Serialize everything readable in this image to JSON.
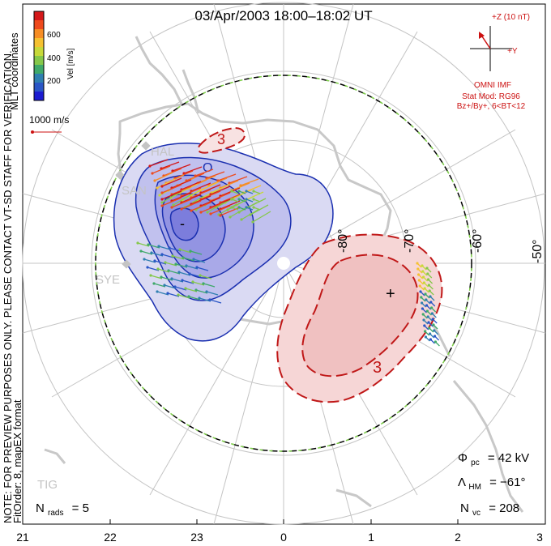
{
  "title": "03/Apr/2003 18:00–18:02 UT",
  "side_note": "NOTE: FOR PREVIEW PURPOSES ONLY. PLEASE CONTACT VT-SD STAFF FOR VERIFICATION.",
  "side_note2": "FitOrder: 8, mapEX format",
  "coord_label": "MLT coordinates",
  "colorbar": {
    "label": "Vel [m/s]",
    "ticks": [
      "600",
      "400",
      "200"
    ],
    "colors": [
      "#d4181a",
      "#ee4a1d",
      "#f68d25",
      "#f5c131",
      "#c7d93a",
      "#85c84a",
      "#3fa96a",
      "#2f7fb0",
      "#2a56c6",
      "#1b1bd0"
    ]
  },
  "ref_vector": "1000 m/s",
  "imf": {
    "z_label": "+Z (10 nT)",
    "y_label": "+Y",
    "source": "OMNI IMF",
    "model": "Stat Mod: RG96",
    "condition": "Bz+/By+, 6<BT<12",
    "arrow_color": "#cc1111"
  },
  "latitude_labels": [
    "-80°",
    "-70°",
    "-60°",
    "-50°"
  ],
  "mlt_ticks": [
    "21",
    "22",
    "23",
    "0",
    "1",
    "2",
    "3"
  ],
  "stations": [
    "HAL",
    "SAN",
    "SYE",
    "TIG"
  ],
  "contour_labels": {
    "neg_min": "-",
    "neg_small": "O",
    "pos_3a": "3",
    "pos_3b": "3",
    "pos_max": "+"
  },
  "stats": {
    "phi_label": "Φ",
    "phi_sub": "pc",
    "phi_value": "= 42 kV",
    "lambda_label": "Λ",
    "lambda_sub": "HM",
    "lambda_value": "= −61°",
    "nvc_label": "N",
    "nvc_sub": "vc",
    "nvc_value": "= 208",
    "nrads_label": "N",
    "nrads_sub": "rads",
    "nrads_value": "= 5"
  },
  "colors": {
    "neg_fill": "#9a9be6",
    "neg_line": "#1a2fb0",
    "pos_fill": "#f3c8c8",
    "pos_line": "#c01818",
    "land": "#c8c8c8",
    "grid": "#c0c0c0",
    "boundary_green": "#7fd04a"
  }
}
